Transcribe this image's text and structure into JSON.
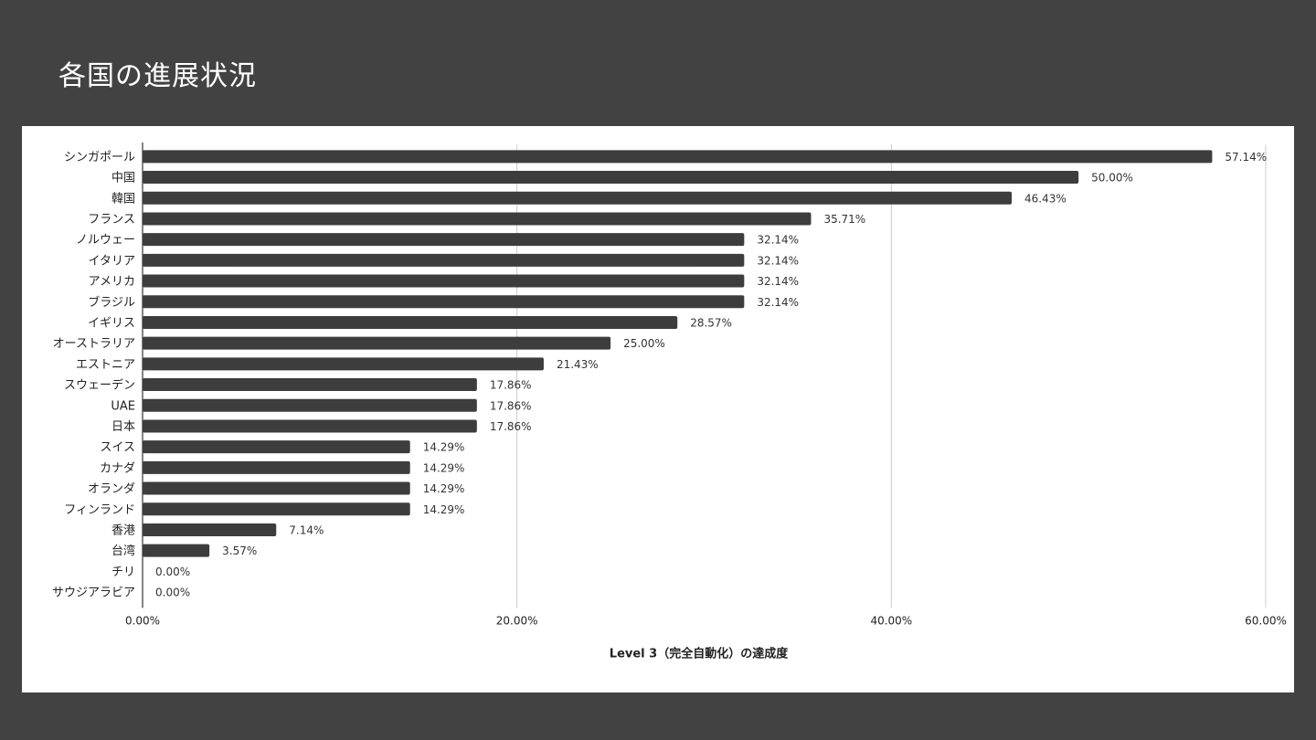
{
  "slide": {
    "title": "各国の進展状況"
  },
  "colors": {
    "background": "#424242",
    "panel": "#ffffff",
    "bar": "#3d3d3d",
    "grid": "#cccccc"
  },
  "chart_data": {
    "type": "bar",
    "orientation": "horizontal",
    "title": "",
    "xlabel": "Level 3（完全自動化）の達成度",
    "ylabel": "",
    "xlim": [
      0,
      60
    ],
    "xticks": [
      "0.00%",
      "20.00%",
      "40.00%",
      "60.00%"
    ],
    "grid": true,
    "legend": "none",
    "categories": [
      "シンガポール",
      "中国",
      "韓国",
      "フランス",
      "ノルウェー",
      "イタリア",
      "アメリカ",
      "ブラジル",
      "イギリス",
      "オーストラリア",
      "エストニア",
      "スウェーデン",
      "UAE",
      "日本",
      "スイス",
      "カナダ",
      "オランダ",
      "フィンランド",
      "香港",
      "台湾",
      "チリ",
      "サウジアラビア"
    ],
    "values": [
      57.14,
      50.0,
      46.43,
      35.71,
      32.14,
      32.14,
      32.14,
      32.14,
      28.57,
      25.0,
      21.43,
      17.86,
      17.86,
      17.86,
      14.29,
      14.29,
      14.29,
      14.29,
      7.14,
      3.57,
      0.0,
      0.0
    ],
    "data_labels": [
      "57.14%",
      "50.00%",
      "46.43%",
      "35.71%",
      "32.14%",
      "32.14%",
      "32.14%",
      "32.14%",
      "28.57%",
      "25.00%",
      "21.43%",
      "17.86%",
      "17.86%",
      "17.86%",
      "14.29%",
      "14.29%",
      "14.29%",
      "14.29%",
      "7.14%",
      "3.57%",
      "0.00%",
      "0.00%"
    ]
  }
}
